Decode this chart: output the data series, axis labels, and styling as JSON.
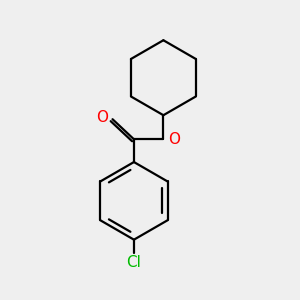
{
  "background_color": "#efefef",
  "bond_color": "#000000",
  "O_color": "#ff0000",
  "Cl_color": "#00bb00",
  "bond_width": 1.6,
  "font_size_atom": 11,
  "fig_size": [
    3.0,
    3.0
  ],
  "dpi": 100,
  "xlim": [
    0,
    10
  ],
  "ylim": [
    0,
    11
  ]
}
